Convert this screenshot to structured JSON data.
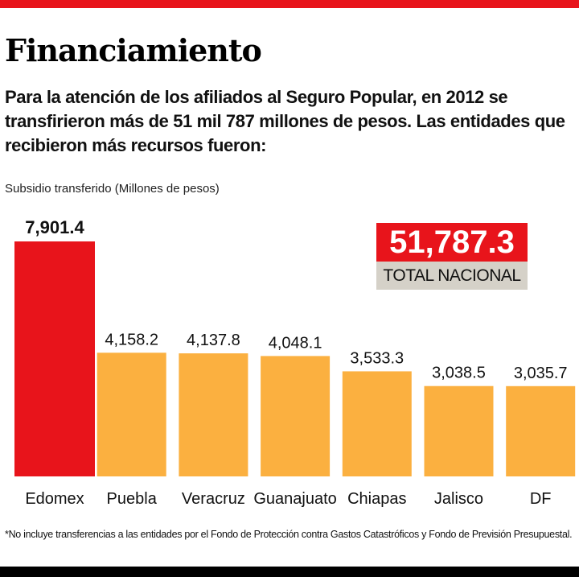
{
  "title": "Financiamiento",
  "subtitle": "Para  la atención  de los afiliados al Seguro Popular, en 2012 se transfirieron más de 51 mil 787 millones de pesos. Las entidades que recibieron más recursos fueron:",
  "total": {
    "value": "51,787.3",
    "label": "TOTAL NACIONAL"
  },
  "footnote": "*No incluye transferencias a las entidades por el Fondo de Protección contra Gastos Catastróficos  y  Fondo de Previsión Presupuestal.",
  "colors": {
    "highlight": "#e8141b",
    "bar": "#fbb040",
    "total_label_bg": "#d5d1c8"
  },
  "chart_data": {
    "type": "bar",
    "title": "Financiamiento",
    "ylabel": "Subsidio transferido  (Millones de pesos)",
    "xlabel": "",
    "categories": [
      "Edomex",
      "Puebla",
      "Veracruz",
      "Guanajuato",
      "Chiapas",
      "Jalisco",
      "DF"
    ],
    "values": [
      7901.4,
      4158.2,
      4137.8,
      4048.1,
      3533.3,
      3038.5,
      3035.7
    ],
    "value_labels": [
      "7,901.4",
      "4,158.2",
      "4,137.8",
      "4,048.1",
      "3,533.3",
      "3,038.5",
      "3,035.7"
    ],
    "highlighted": [
      "Edomex"
    ],
    "ylim": [
      0,
      7901.4
    ],
    "grid": false
  }
}
